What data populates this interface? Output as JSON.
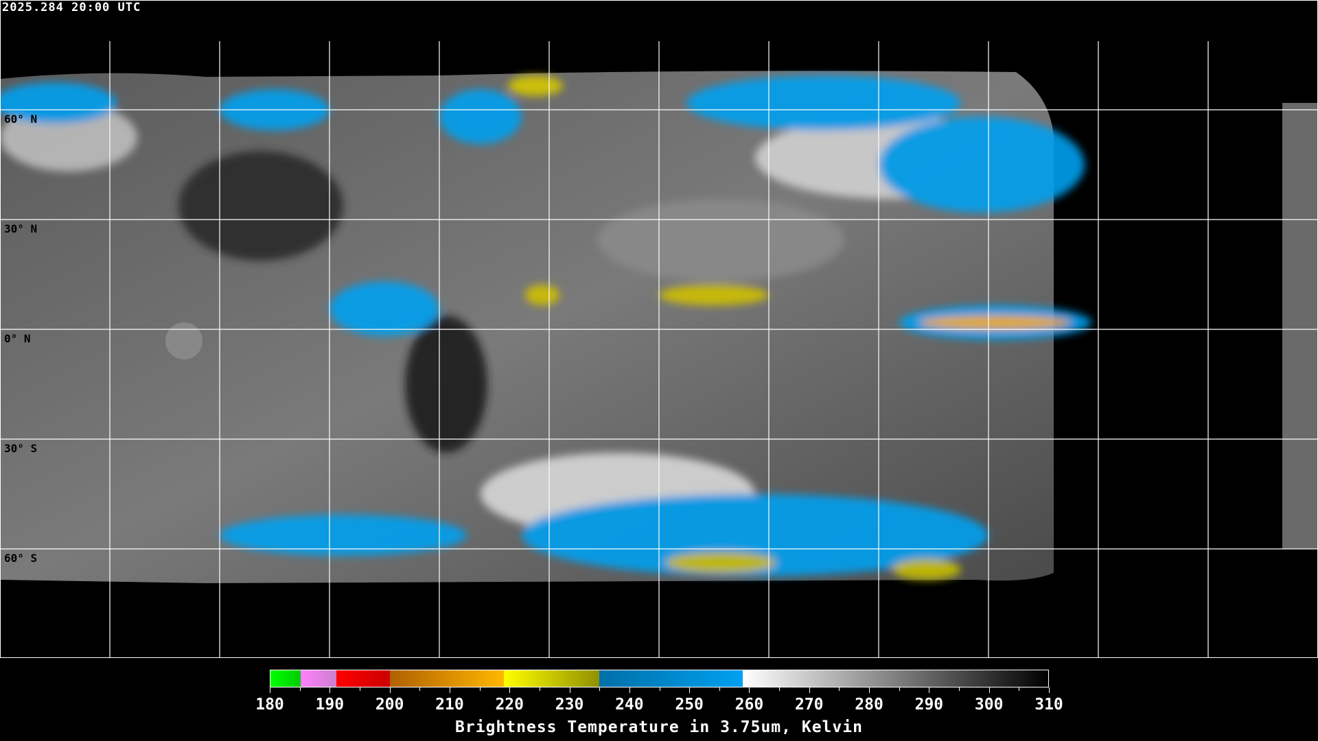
{
  "header": {
    "timestamp": "2025.284 20:00 UTC"
  },
  "map": {
    "projection": "equirectangular",
    "grid_spacing_deg": 30,
    "lat_labels": [
      "60° N",
      "30° N",
      "0° N",
      "30° S",
      "60° S"
    ],
    "colors": {
      "background": "#000000",
      "grid": "#ffffff",
      "coastlines_on_image": "#000000",
      "coastlines_off_image": "#ffffff"
    }
  },
  "colorbar": {
    "title": "Brightness Temperature in 3.75um, Kelvin",
    "range": [
      180,
      310
    ],
    "tick_labels": [
      "180",
      "190",
      "200",
      "210",
      "220",
      "230",
      "240",
      "250",
      "260",
      "270",
      "280",
      "290",
      "300",
      "310"
    ],
    "segments": [
      {
        "from": 180,
        "to": 185,
        "colors": [
          "#00ff00",
          "#00cc00"
        ]
      },
      {
        "from": 185,
        "to": 191,
        "colors": [
          "#ff80ff",
          "#cc80cc"
        ]
      },
      {
        "from": 191,
        "to": 200,
        "colors": [
          "#ff0000",
          "#cc0000"
        ]
      },
      {
        "from": 200,
        "to": 219,
        "colors": [
          "#b06000",
          "#ffb800"
        ]
      },
      {
        "from": 219,
        "to": 235,
        "colors": [
          "#ffff00",
          "#909000"
        ]
      },
      {
        "from": 235,
        "to": 259,
        "colors": [
          "#0070a8",
          "#00a0f0"
        ]
      },
      {
        "from": 259,
        "to": 310,
        "colors": [
          "#ffffff",
          "#000000"
        ]
      }
    ]
  }
}
